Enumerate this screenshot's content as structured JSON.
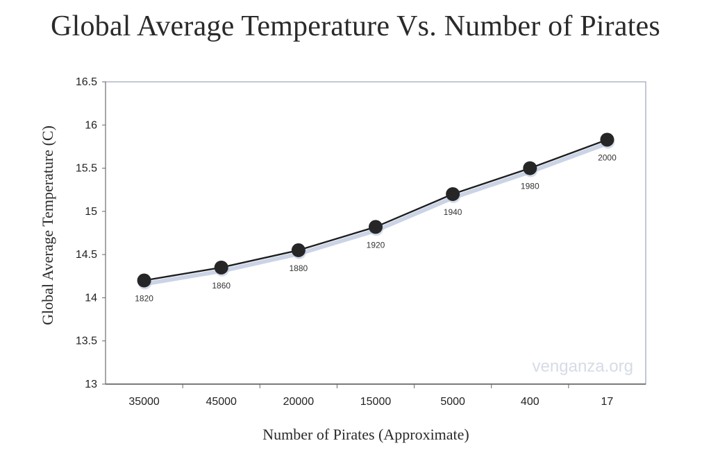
{
  "chart_data": {
    "type": "line",
    "title": "Global Average Temperature Vs. Number of Pirates",
    "xlabel": "Number of Pirates (Approximate)",
    "ylabel": "Global Average Temperature (C)",
    "categories": [
      "35000",
      "45000",
      "20000",
      "15000",
      "5000",
      "400",
      "17"
    ],
    "point_labels": [
      "1820",
      "1860",
      "1880",
      "1920",
      "1940",
      "1980",
      "2000"
    ],
    "series": [
      {
        "values": [
          14.2,
          14.35,
          14.55,
          14.82,
          15.2,
          15.5,
          15.83
        ]
      }
    ],
    "ylim": [
      13,
      16.5
    ],
    "yticks": [
      "13",
      "13.5",
      "14",
      "14.5",
      "15",
      "15.5",
      "16",
      "16.5"
    ],
    "grid": false,
    "watermark": "venganza.org",
    "colors": {
      "line": "#1e1e1e",
      "marker": "#262626",
      "shadow": "#b9c6de",
      "frame": "#9aa4b6"
    }
  }
}
